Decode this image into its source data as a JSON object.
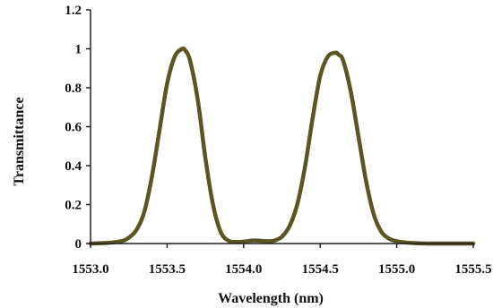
{
  "chart_data": {
    "type": "line",
    "title": "",
    "xlabel": "Wavelength (nm)",
    "ylabel": "Transmittance",
    "xlim": [
      1553.0,
      1555.5
    ],
    "ylim": [
      0,
      1.2
    ],
    "x_ticks": [
      1553.0,
      1553.5,
      1554.0,
      1554.5,
      1555.0,
      1555.5
    ],
    "x_tick_labels": [
      "1553.0",
      "1553.5",
      "1554.0",
      "1554.5",
      "1555.0",
      "1555.5"
    ],
    "y_ticks": [
      0,
      0.2,
      0.4,
      0.6,
      0.8,
      1,
      1.2
    ],
    "y_tick_labels": [
      "0",
      "0.2",
      "0.4",
      "0.6",
      "0.8",
      "1",
      "1.2"
    ],
    "grid": false,
    "legend": "none",
    "series_color": "#5b5522",
    "series": [
      {
        "x": [
          1553.0,
          1553.1,
          1553.2,
          1553.25,
          1553.3,
          1553.35,
          1553.4,
          1553.45,
          1553.5,
          1553.55,
          1553.6,
          1553.62,
          1553.65,
          1553.7,
          1553.75,
          1553.8,
          1553.85,
          1553.9,
          1553.95,
          1554.0,
          1554.05,
          1554.1,
          1554.15,
          1554.2,
          1554.25,
          1554.3,
          1554.35,
          1554.4,
          1554.45,
          1554.5,
          1554.55,
          1554.6,
          1554.62,
          1554.65,
          1554.7,
          1554.75,
          1554.8,
          1554.85,
          1554.9,
          1554.95,
          1555.0,
          1555.05,
          1555.1,
          1555.2,
          1555.3,
          1555.4,
          1555.5
        ],
        "y": [
          0.0,
          0.003,
          0.012,
          0.03,
          0.07,
          0.16,
          0.34,
          0.58,
          0.82,
          0.96,
          1.0,
          0.99,
          0.94,
          0.74,
          0.44,
          0.2,
          0.06,
          0.015,
          0.008,
          0.01,
          0.015,
          0.015,
          0.012,
          0.015,
          0.035,
          0.09,
          0.2,
          0.39,
          0.64,
          0.86,
          0.96,
          0.98,
          0.97,
          0.94,
          0.78,
          0.55,
          0.32,
          0.15,
          0.06,
          0.025,
          0.012,
          0.006,
          0.003,
          0.0,
          0.0,
          0.0,
          0.0
        ]
      }
    ]
  }
}
